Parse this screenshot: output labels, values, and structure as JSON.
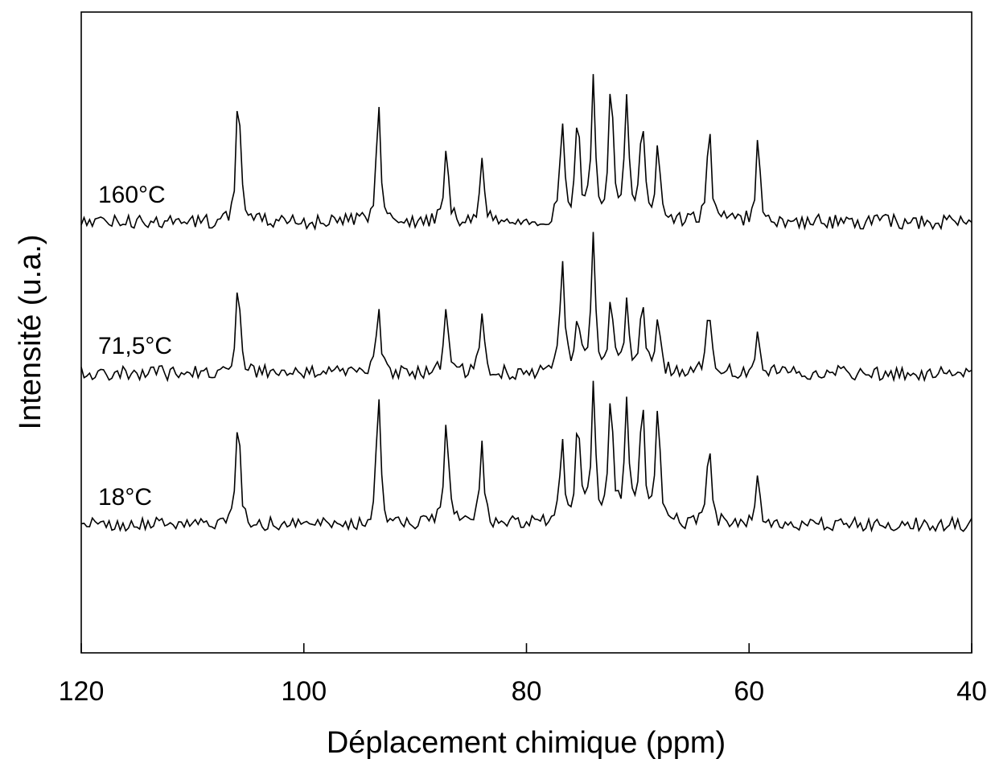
{
  "chart_data": {
    "type": "line",
    "title": "",
    "xlabel": "Déplacement chimique (ppm)",
    "ylabel": "Intensité (u.a.)",
    "xlim": [
      120,
      40
    ],
    "x_reversed": true,
    "x_ticks": [
      "120",
      "100",
      "80",
      "60",
      "40"
    ],
    "y_ticks_shown": false,
    "grid": false,
    "legend": "none",
    "series_order": "top-to-bottom",
    "peaks_ppm": [
      105.9,
      93.3,
      87.2,
      84.0,
      76.8,
      75.4,
      74.0,
      72.4,
      71.0,
      69.6,
      68.2,
      63.6,
      59.2
    ],
    "series": [
      {
        "name": "160°C",
        "baseline": 2,
        "peak_heights": [
          1.0,
          0.9,
          0.55,
          0.45,
          0.7,
          0.78,
          1.05,
          1.1,
          0.92,
          0.8,
          0.55,
          0.75,
          0.6
        ]
      },
      {
        "name": "71,5°C",
        "baseline": 1,
        "peak_heights": [
          0.72,
          0.55,
          0.45,
          0.42,
          0.92,
          0.42,
          1.0,
          0.58,
          0.55,
          0.55,
          0.4,
          0.5,
          0.35
        ]
      },
      {
        "name": "18°C",
        "baseline": 0,
        "peak_heights": [
          0.82,
          0.97,
          0.8,
          0.6,
          0.68,
          0.8,
          0.98,
          1.0,
          0.92,
          0.92,
          0.88,
          0.6,
          0.36
        ]
      }
    ]
  }
}
